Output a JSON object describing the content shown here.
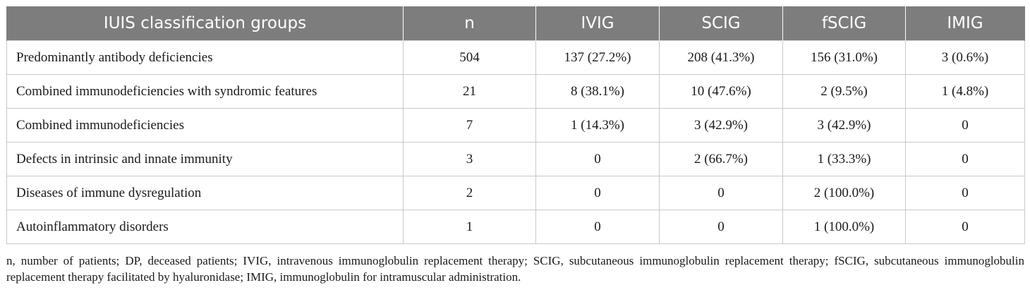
{
  "table": {
    "headers": [
      "IUIS classification groups",
      "n",
      "IVIG",
      "SCIG",
      "fSCIG",
      "IMIG"
    ],
    "rows": [
      [
        "Predominantly antibody deficiencies",
        "504",
        "137 (27.2%)",
        "208 (41.3%)",
        "156 (31.0%)",
        "3 (0.6%)"
      ],
      [
        "Combined immunodeficiencies with syndromic features",
        "21",
        "8 (38.1%)",
        "10 (47.6%)",
        "2 (9.5%)",
        "1 (4.8%)"
      ],
      [
        "Combined immunodeficiencies",
        "7",
        "1 (14.3%)",
        "3 (42.9%)",
        "3 (42.9%)",
        "0"
      ],
      [
        "Defects in intrinsic and innate immunity",
        "3",
        "0",
        "2 (66.7%)",
        "1 (33.3%)",
        "0"
      ],
      [
        "Diseases of immune dysregulation",
        "2",
        "0",
        "0",
        "2 (100.0%)",
        "0"
      ],
      [
        "Autoinflammatory disorders",
        "1",
        "0",
        "0",
        "1 (100.0%)",
        "0"
      ]
    ]
  },
  "footnote": "n, number of patients; DP, deceased patients; IVIG, intravenous immunoglobulin replacement therapy; SCIG, subcutaneous immunoglobulin replacement therapy; fSCIG, subcutaneous immunoglobulin replacement therapy facilitated by hyaluronidase; IMIG, immunoglobulin for intramuscular administration.",
  "colors": {
    "header_background": "#7d7d7d",
    "header_text": "#ffffff",
    "grid_line": "#c9c9c9",
    "body_text": "#1a1a1a"
  }
}
